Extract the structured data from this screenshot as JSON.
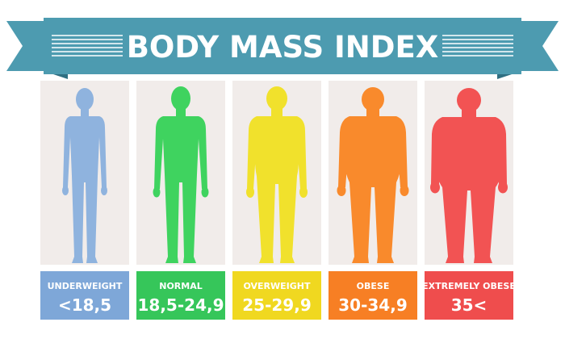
{
  "title": "BODY MASS INDEX",
  "colors": {
    "banner": "#4d9bb0",
    "banner_dark": "#2f6f82",
    "panel": "#f1ecea"
  },
  "categories": [
    {
      "label": "UNDERWEIGHT",
      "range": "<18,5",
      "color": "#8fb3de",
      "box_color": "#7ea7d8",
      "figure": "underweight-figure"
    },
    {
      "label": "NORMAL",
      "range": "18,5-24,9",
      "color": "#3fd35f",
      "box_color": "#36c65a",
      "figure": "normal-figure"
    },
    {
      "label": "OVERWEIGHT",
      "range": "25-29,9",
      "color": "#f1e12c",
      "box_color": "#f0d820",
      "figure": "overweight-figure"
    },
    {
      "label": "OBESE",
      "range": "30-34,9",
      "color": "#f98a2c",
      "box_color": "#f77f24",
      "figure": "obese-figure"
    },
    {
      "label": "EXTREMELY OBESE",
      "range": "35<",
      "color": "#f25353",
      "box_color": "#ef4d4d",
      "figure": "extremely-obese-figure"
    }
  ]
}
